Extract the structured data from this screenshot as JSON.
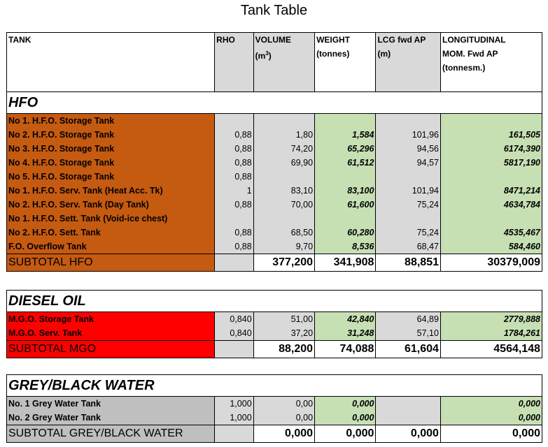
{
  "title": "Tank Table",
  "headers": {
    "tank": "TANK",
    "rho": "RHO",
    "volume": "VOLUME",
    "volume_unit_pre": "(m",
    "volume_unit_sup": "3",
    "volume_unit_post": ")",
    "weight": "WEIGHT",
    "weight_unit": "(tonnes)",
    "lcg": "LCG fwd AP",
    "lcg_unit": "(m)",
    "mom1": "LONGITUDINAL",
    "mom2": "MOM. Fwd AP",
    "mom3": "(tonnesm.)"
  },
  "hfo": {
    "title": "HFO",
    "rows": [
      {
        "tank": "No 1. H.F.O. Storage Tank",
        "rho": "",
        "vol": "",
        "wt": "",
        "lcg": "",
        "mom": ""
      },
      {
        "tank": "No 2. H.F.O. Storage Tank",
        "rho": "0,88",
        "vol": "1,80",
        "wt": "1,584",
        "lcg": "101,96",
        "mom": "161,505"
      },
      {
        "tank": "No 3. H.F.O. Storage Tank",
        "rho": "0,88",
        "vol": "74,20",
        "wt": "65,296",
        "lcg": "94,56",
        "mom": "6174,390"
      },
      {
        "tank": "No 4. H.F.O. Storage Tank",
        "rho": "0,88",
        "vol": "69,90",
        "wt": "61,512",
        "lcg": "94,57",
        "mom": "5817,190"
      },
      {
        "tank": "No 5. H.F.O. Storage Tank",
        "rho": "0,88",
        "vol": "",
        "wt": "",
        "lcg": "",
        "mom": ""
      },
      {
        "tank": "No 1. H.F.O. Serv. Tank (Heat Acc. Tk)",
        "rho": "1",
        "vol": "83,10",
        "wt": "83,100",
        "lcg": "101,94",
        "mom": "8471,214"
      },
      {
        "tank": "No 2. H.F.O. Serv. Tank (Day Tank)",
        "rho": "0,88",
        "vol": "70,00",
        "wt": "61,600",
        "lcg": "75,24",
        "mom": "4634,784"
      },
      {
        "tank": "No 1. H.F.O. Sett. Tank (Void-ice chest)",
        "rho": "",
        "vol": "",
        "wt": "",
        "lcg": "",
        "mom": ""
      },
      {
        "tank": "No 2. H.F.O. Sett. Tank",
        "rho": "0,88",
        "vol": "68,50",
        "wt": "60,280",
        "lcg": "75,24",
        "mom": "4535,467"
      },
      {
        "tank": "F.O. Overflow Tank",
        "rho": "0,88",
        "vol": "9,70",
        "wt": "8,536",
        "lcg": "68,47",
        "mom": "584,460"
      }
    ],
    "subtotal": {
      "label": "SUBTOTAL HFO",
      "vol": "377,200",
      "wt": "341,908",
      "lcg": "88,851",
      "mom": "30379,009"
    }
  },
  "diesel": {
    "title": "DIESEL OIL",
    "rows": [
      {
        "tank": "M.G.O. Storage Tank",
        "rho": "0,840",
        "vol": "51,00",
        "wt": "42,840",
        "lcg": "64,89",
        "mom": "2779,888"
      },
      {
        "tank": "M.G.O. Serv. Tank",
        "rho": "0,840",
        "vol": "37,20",
        "wt": "31,248",
        "lcg": "57,10",
        "mom": "1784,261"
      }
    ],
    "subtotal": {
      "label": "SUBTOTAL MGO",
      "vol": "88,200",
      "wt": "74,088",
      "lcg": "61,604",
      "mom": "4564,148"
    }
  },
  "water": {
    "title": "GREY/BLACK WATER",
    "rows": [
      {
        "tank": "No. 1 Grey Water Tank",
        "rho": "1,000",
        "vol": "0,00",
        "wt": "0,000",
        "lcg": "",
        "mom": "0,000"
      },
      {
        "tank": "No. 2 Grey Water Tank",
        "rho": "1,000",
        "vol": "0,00",
        "wt": "0,000",
        "lcg": "",
        "mom": "0,000"
      }
    ],
    "subtotal": {
      "label": "SUBTOTAL GREY/BLACK WATER",
      "vol": "0,000",
      "wt": "0,000",
      "lcg": "0,000",
      "mom": "0,000"
    }
  },
  "colors": {
    "hfo": "#c55a11",
    "diesel": "#ff0000",
    "water": "#bfbfbf",
    "green": "#c6e0b4",
    "grey": "#d9d9d9"
  }
}
